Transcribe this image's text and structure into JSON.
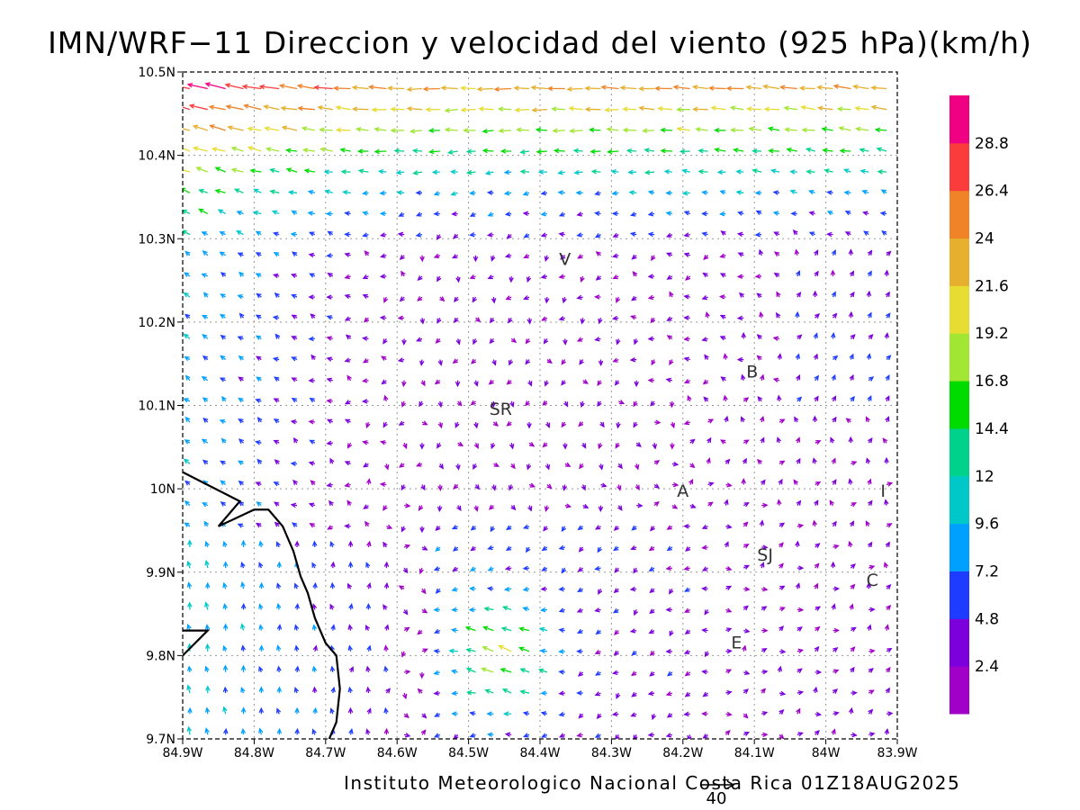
{
  "title": "IMN/WRF−11 Direccion y velocidad del viento (925 hPa)(km/h)",
  "footer": "Instituto Meteorologico Nacional Costa Rica 01Z18AUG2025",
  "reference_vector": {
    "label": "40",
    "value": 40
  },
  "axes": {
    "lon_ticks": [
      "84.9W",
      "84.8W",
      "84.7W",
      "84.6W",
      "84.5W",
      "84.4W",
      "84.3W",
      "84.2W",
      "84.1W",
      "84W",
      "83.9W"
    ],
    "lat_ticks": [
      "10.5N",
      "10.4N",
      "10.3N",
      "10.2N",
      "10.1N",
      "10N",
      "9.9N",
      "9.8N",
      "9.7N"
    ],
    "lon_range": [
      -84.9,
      -83.9
    ],
    "lat_range": [
      9.7,
      10.5
    ],
    "grid": true
  },
  "colorbar": {
    "labels": [
      "2.4",
      "4.8",
      "7.2",
      "9.6",
      "12",
      "14.4",
      "16.8",
      "19.2",
      "21.6",
      "24",
      "26.4",
      "28.8"
    ],
    "colors": [
      "#a000c8",
      "#7b00dc",
      "#1e3cff",
      "#00a0ff",
      "#00c8c8",
      "#00d28c",
      "#00dc00",
      "#a0e632",
      "#e6dc32",
      "#e6af2d",
      "#f08228",
      "#fa3c3c",
      "#f00082"
    ]
  },
  "place_labels": [
    {
      "text": "V",
      "lon": -84.365,
      "lat": 10.275
    },
    {
      "text": "SR",
      "lon": -84.455,
      "lat": 10.095
    },
    {
      "text": "B",
      "lon": -84.103,
      "lat": 10.14
    },
    {
      "text": "A",
      "lon": -84.2,
      "lat": 9.997
    },
    {
      "text": "I",
      "lon": -83.92,
      "lat": 9.997
    },
    {
      "text": "SJ",
      "lon": -84.085,
      "lat": 9.92
    },
    {
      "text": "C",
      "lon": -83.935,
      "lat": 9.89
    },
    {
      "text": "E",
      "lon": -84.125,
      "lat": 9.815
    }
  ],
  "coastline": [
    [
      [
        -84.9,
        10.02
      ],
      [
        -84.82,
        9.985
      ],
      [
        -84.85,
        9.955
      ],
      [
        -84.8,
        9.975
      ],
      [
        -84.78,
        9.975
      ],
      [
        -84.76,
        9.955
      ],
      [
        -84.745,
        9.925
      ],
      [
        -84.735,
        9.895
      ],
      [
        -84.725,
        9.875
      ],
      [
        -84.715,
        9.845
      ],
      [
        -84.7,
        9.815
      ],
      [
        -84.685,
        9.8
      ],
      [
        -84.68,
        9.76
      ],
      [
        -84.685,
        9.72
      ],
      [
        -84.695,
        9.7
      ]
    ],
    [
      [
        -84.9,
        9.83
      ],
      [
        -84.865,
        9.83
      ],
      [
        -84.9,
        9.8
      ]
    ]
  ]
}
